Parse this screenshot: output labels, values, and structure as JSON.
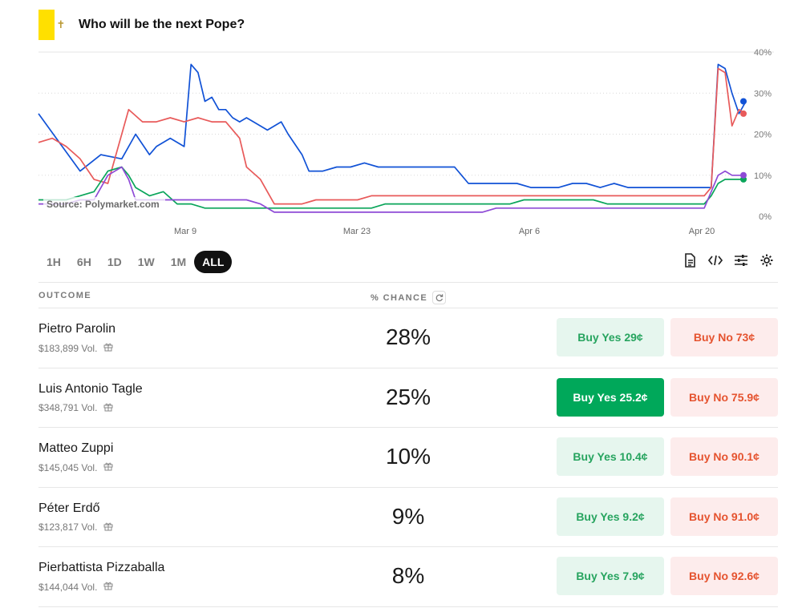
{
  "header": {
    "title": "Who will be the next Pope?"
  },
  "chart": {
    "source": "Source: Polymarket.com",
    "y_ticks": [
      "40%",
      "30%",
      "20%",
      "10%",
      "0%"
    ],
    "x_ticks": [
      "Mar 9",
      "Mar 23",
      "Apr 6",
      "Apr 20"
    ]
  },
  "chart_data": {
    "type": "line",
    "y_unit": "%",
    "ylim": [
      0,
      40
    ],
    "grid": true,
    "series": [
      {
        "color": "#1152d6",
        "points": [
          [
            0,
            25
          ],
          [
            3,
            18
          ],
          [
            6,
            11
          ],
          [
            9,
            15
          ],
          [
            12,
            14
          ],
          [
            14,
            20
          ],
          [
            16,
            15
          ],
          [
            17,
            17
          ],
          [
            19,
            19
          ],
          [
            21,
            17
          ],
          [
            22,
            37
          ],
          [
            23,
            35
          ],
          [
            24,
            28
          ],
          [
            25,
            29
          ],
          [
            26,
            26
          ],
          [
            27,
            26
          ],
          [
            28,
            24
          ],
          [
            29,
            23
          ],
          [
            30,
            24
          ],
          [
            31,
            23
          ],
          [
            33,
            21
          ],
          [
            35,
            23
          ],
          [
            36,
            20
          ],
          [
            38,
            15
          ],
          [
            39,
            11
          ],
          [
            41,
            11
          ],
          [
            43,
            12
          ],
          [
            45,
            12
          ],
          [
            47,
            13
          ],
          [
            49,
            12
          ],
          [
            51,
            12
          ],
          [
            53,
            12
          ],
          [
            55,
            12
          ],
          [
            58,
            12
          ],
          [
            60,
            12
          ],
          [
            61,
            10
          ],
          [
            62,
            8
          ],
          [
            64,
            8
          ],
          [
            66,
            8
          ],
          [
            69,
            8
          ],
          [
            71,
            7
          ],
          [
            73,
            7
          ],
          [
            75,
            7
          ],
          [
            77,
            8
          ],
          [
            79,
            8
          ],
          [
            81,
            7
          ],
          [
            83,
            8
          ],
          [
            85,
            7
          ],
          [
            88,
            7
          ],
          [
            90,
            7
          ],
          [
            93,
            7
          ],
          [
            95,
            7
          ],
          [
            97,
            7
          ],
          [
            98,
            37
          ],
          [
            99,
            36
          ],
          [
            100,
            30
          ],
          [
            101,
            25
          ],
          [
            102,
            28
          ]
        ]
      },
      {
        "color": "#e85a5a",
        "points": [
          [
            0,
            18
          ],
          [
            2,
            19
          ],
          [
            4,
            17
          ],
          [
            6,
            14
          ],
          [
            8,
            9
          ],
          [
            10,
            8
          ],
          [
            12,
            20
          ],
          [
            13,
            26
          ],
          [
            15,
            23
          ],
          [
            17,
            23
          ],
          [
            19,
            24
          ],
          [
            21,
            23
          ],
          [
            23,
            24
          ],
          [
            25,
            23
          ],
          [
            27,
            23
          ],
          [
            29,
            19
          ],
          [
            30,
            12
          ],
          [
            32,
            9
          ],
          [
            34,
            3
          ],
          [
            36,
            3
          ],
          [
            38,
            3
          ],
          [
            40,
            4
          ],
          [
            42,
            4
          ],
          [
            44,
            4
          ],
          [
            46,
            4
          ],
          [
            48,
            5
          ],
          [
            50,
            5
          ],
          [
            52,
            5
          ],
          [
            54,
            5
          ],
          [
            56,
            5
          ],
          [
            58,
            5
          ],
          [
            60,
            5
          ],
          [
            62,
            5
          ],
          [
            64,
            5
          ],
          [
            66,
            5
          ],
          [
            68,
            5
          ],
          [
            70,
            5
          ],
          [
            72,
            5
          ],
          [
            74,
            5
          ],
          [
            76,
            5
          ],
          [
            78,
            5
          ],
          [
            80,
            5
          ],
          [
            82,
            5
          ],
          [
            84,
            5
          ],
          [
            86,
            5
          ],
          [
            88,
            5
          ],
          [
            90,
            5
          ],
          [
            92,
            5
          ],
          [
            94,
            5
          ],
          [
            96,
            5
          ],
          [
            97,
            7
          ],
          [
            98,
            36
          ],
          [
            99,
            35
          ],
          [
            100,
            22
          ],
          [
            101,
            26
          ],
          [
            102,
            25
          ]
        ]
      },
      {
        "color": "#0aa55a",
        "points": [
          [
            0,
            4
          ],
          [
            4,
            4
          ],
          [
            6,
            5
          ],
          [
            8,
            6
          ],
          [
            10,
            11
          ],
          [
            12,
            12
          ],
          [
            13,
            10
          ],
          [
            14,
            7
          ],
          [
            16,
            5
          ],
          [
            18,
            6
          ],
          [
            20,
            3
          ],
          [
            22,
            3
          ],
          [
            24,
            2
          ],
          [
            26,
            2
          ],
          [
            28,
            2
          ],
          [
            30,
            2
          ],
          [
            32,
            2
          ],
          [
            34,
            2
          ],
          [
            36,
            2
          ],
          [
            38,
            2
          ],
          [
            40,
            2
          ],
          [
            42,
            2
          ],
          [
            44,
            2
          ],
          [
            46,
            2
          ],
          [
            48,
            2
          ],
          [
            50,
            3
          ],
          [
            52,
            3
          ],
          [
            54,
            3
          ],
          [
            56,
            3
          ],
          [
            58,
            3
          ],
          [
            60,
            3
          ],
          [
            62,
            3
          ],
          [
            64,
            3
          ],
          [
            66,
            3
          ],
          [
            68,
            3
          ],
          [
            70,
            4
          ],
          [
            72,
            4
          ],
          [
            74,
            4
          ],
          [
            76,
            4
          ],
          [
            78,
            4
          ],
          [
            80,
            4
          ],
          [
            82,
            3
          ],
          [
            84,
            3
          ],
          [
            86,
            3
          ],
          [
            88,
            3
          ],
          [
            90,
            3
          ],
          [
            92,
            3
          ],
          [
            94,
            3
          ],
          [
            96,
            3
          ],
          [
            97,
            5
          ],
          [
            98,
            8
          ],
          [
            99,
            9
          ],
          [
            100,
            9
          ],
          [
            101,
            9
          ],
          [
            102,
            9
          ]
        ]
      },
      {
        "color": "#8e4ad6",
        "points": [
          [
            0,
            3
          ],
          [
            4,
            3
          ],
          [
            6,
            4
          ],
          [
            8,
            4
          ],
          [
            10,
            10
          ],
          [
            12,
            12
          ],
          [
            13,
            9
          ],
          [
            14,
            4
          ],
          [
            16,
            4
          ],
          [
            18,
            4
          ],
          [
            20,
            4
          ],
          [
            22,
            4
          ],
          [
            24,
            4
          ],
          [
            26,
            4
          ],
          [
            28,
            4
          ],
          [
            30,
            4
          ],
          [
            32,
            3
          ],
          [
            34,
            1
          ],
          [
            36,
            1
          ],
          [
            38,
            1
          ],
          [
            40,
            1
          ],
          [
            42,
            1
          ],
          [
            44,
            1
          ],
          [
            46,
            1
          ],
          [
            48,
            1
          ],
          [
            50,
            1
          ],
          [
            52,
            1
          ],
          [
            54,
            1
          ],
          [
            56,
            1
          ],
          [
            58,
            1
          ],
          [
            60,
            1
          ],
          [
            62,
            1
          ],
          [
            64,
            1
          ],
          [
            66,
            2
          ],
          [
            68,
            2
          ],
          [
            70,
            2
          ],
          [
            72,
            2
          ],
          [
            74,
            2
          ],
          [
            76,
            2
          ],
          [
            78,
            2
          ],
          [
            80,
            2
          ],
          [
            82,
            2
          ],
          [
            84,
            2
          ],
          [
            86,
            2
          ],
          [
            88,
            2
          ],
          [
            90,
            2
          ],
          [
            92,
            2
          ],
          [
            94,
            2
          ],
          [
            96,
            2
          ],
          [
            97,
            6
          ],
          [
            98,
            10
          ],
          [
            99,
            11
          ],
          [
            100,
            10
          ],
          [
            101,
            10
          ],
          [
            102,
            10
          ]
        ]
      }
    ]
  },
  "ranges": [
    {
      "label": "1H",
      "active": false
    },
    {
      "label": "6H",
      "active": false
    },
    {
      "label": "1D",
      "active": false
    },
    {
      "label": "1W",
      "active": false
    },
    {
      "label": "1M",
      "active": false
    },
    {
      "label": "ALL",
      "active": true
    }
  ],
  "tools": [
    "document-icon",
    "embed-code-icon",
    "sliders-icon",
    "settings-gear-icon"
  ],
  "table": {
    "col_outcome": "OUTCOME",
    "col_chance": "% CHANCE",
    "rows": [
      {
        "name": "Pietro Parolin",
        "vol": "$183,899 Vol.",
        "pct": "28%",
        "yes": "Buy Yes 29¢",
        "no": "Buy No 73¢",
        "yes_active": false
      },
      {
        "name": "Luis Antonio Tagle",
        "vol": "$348,791 Vol.",
        "pct": "25%",
        "yes": "Buy Yes 25.2¢",
        "no": "Buy No 75.9¢",
        "yes_active": true
      },
      {
        "name": "Matteo Zuppi",
        "vol": "$145,045 Vol.",
        "pct": "10%",
        "yes": "Buy Yes 10.4¢",
        "no": "Buy No 90.1¢",
        "yes_active": false
      },
      {
        "name": "Péter Erdő",
        "vol": "$123,817 Vol.",
        "pct": "9%",
        "yes": "Buy Yes 9.2¢",
        "no": "Buy No 91.0¢",
        "yes_active": false
      },
      {
        "name": "Pierbattista Pizzaballa",
        "vol": "$144,044 Vol.",
        "pct": "8%",
        "yes": "Buy Yes 7.9¢",
        "no": "Buy No 92.6¢",
        "yes_active": false
      }
    ]
  }
}
